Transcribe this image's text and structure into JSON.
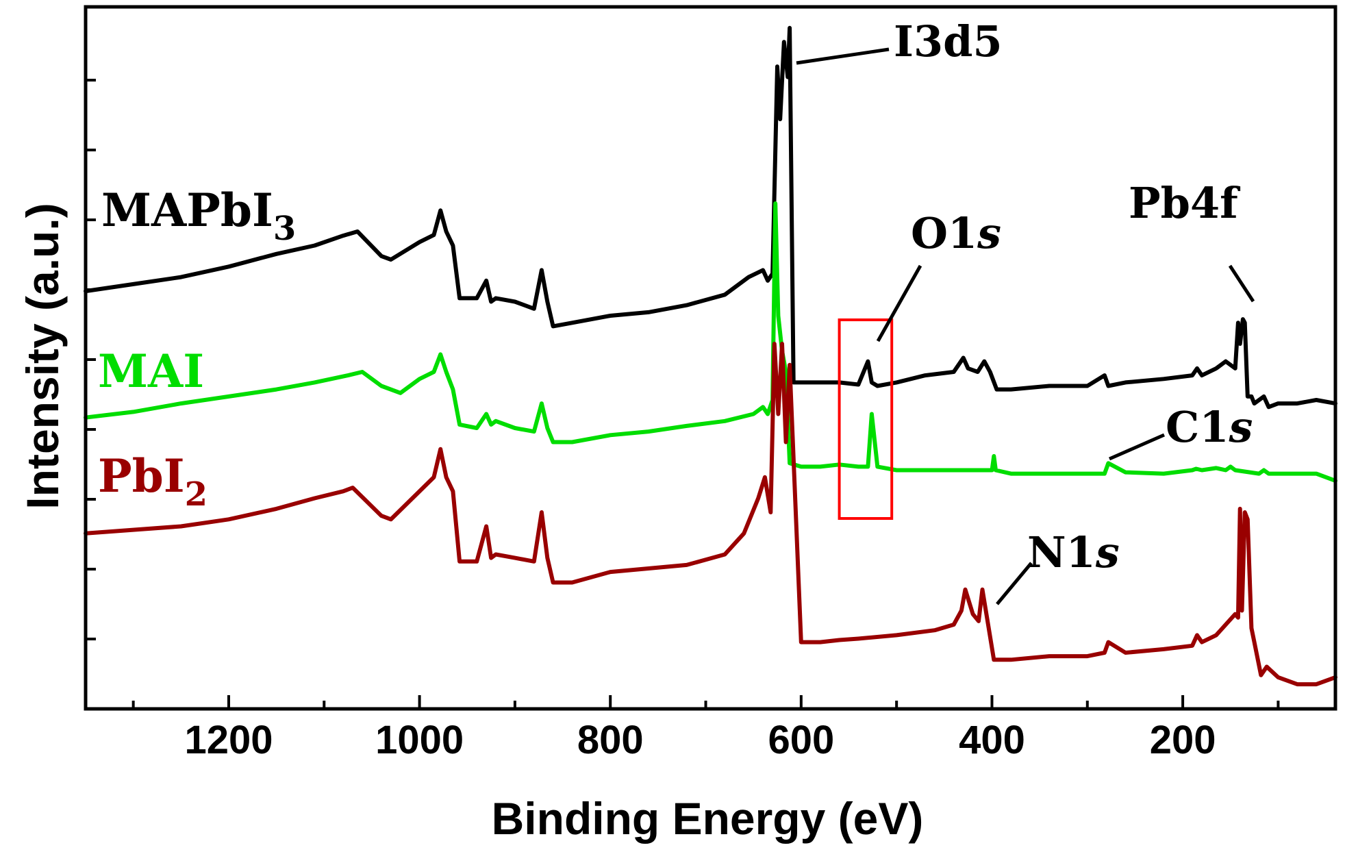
{
  "chart_data": {
    "type": "line",
    "title": "",
    "xlabel": "Binding Energy (eV)",
    "ylabel": "Intensity (a.u.)",
    "xlim": [
      1350,
      40
    ],
    "x_reversed": true,
    "xticks": [
      1200,
      1000,
      800,
      600,
      400,
      200
    ],
    "xtick_labels": [
      "1200",
      "1000",
      "800",
      "600",
      "400",
      "200"
    ],
    "ylim": [
      0,
      100
    ],
    "series": [
      {
        "name": "MAPbI3",
        "label_main": "MAPbI",
        "label_sub": "3",
        "color": "#000000",
        "x": [
          1350,
          1300,
          1250,
          1200,
          1150,
          1110,
          1080,
          1065,
          1040,
          1030,
          1000,
          985,
          978,
          972,
          965,
          958,
          940,
          930,
          925,
          920,
          900,
          880,
          872,
          866,
          860,
          840,
          800,
          760,
          720,
          680,
          655,
          640,
          635,
          630,
          625,
          622,
          618,
          614,
          612,
          608,
          600,
          580,
          560,
          540,
          530,
          526,
          520,
          500,
          470,
          440,
          430,
          425,
          415,
          408,
          402,
          395,
          380,
          340,
          300,
          282,
          278,
          260,
          220,
          190,
          185,
          180,
          165,
          155,
          145,
          142,
          140,
          137,
          135,
          132,
          128,
          125,
          115,
          110,
          100,
          80,
          60,
          40
        ],
        "y": [
          59.5,
          60.5,
          61.5,
          63,
          64.8,
          66,
          67.4,
          68,
          64.5,
          64,
          66.5,
          67.5,
          71,
          68,
          66,
          58.5,
          58.5,
          61,
          58,
          58.5,
          58,
          57,
          62.5,
          58,
          54.5,
          55,
          56,
          56.5,
          57.5,
          59,
          61.5,
          62.5,
          61,
          62,
          91.5,
          84,
          95,
          90,
          97,
          46.5,
          46.5,
          46.5,
          46.5,
          46.2,
          49.5,
          46.5,
          46,
          46.5,
          47.5,
          48,
          50,
          48.5,
          48,
          49.5,
          48,
          45.5,
          45.5,
          46,
          46,
          47.5,
          46,
          46.5,
          47,
          47.5,
          48.5,
          47.5,
          48.5,
          49.5,
          48.5,
          55,
          52,
          55.5,
          55,
          44.5,
          44.5,
          43.5,
          44.5,
          43,
          43.5,
          43.5,
          44,
          43.5
        ]
      },
      {
        "name": "MAI",
        "label_main": "MAI",
        "label_sub": "",
        "color": "#00dd00",
        "x": [
          1350,
          1300,
          1250,
          1200,
          1150,
          1110,
          1075,
          1060,
          1040,
          1020,
          1000,
          985,
          978,
          972,
          965,
          958,
          940,
          930,
          925,
          920,
          900,
          880,
          872,
          866,
          860,
          840,
          800,
          760,
          720,
          680,
          650,
          640,
          635,
          630,
          627,
          624,
          620,
          616,
          612,
          600,
          580,
          560,
          540,
          530,
          526,
          520,
          500,
          450,
          400,
          398,
          396,
          380,
          340,
          300,
          282,
          278,
          260,
          220,
          190,
          186,
          180,
          165,
          155,
          150,
          145,
          120,
          115,
          110,
          100,
          80,
          60,
          40
        ],
        "y": [
          41.5,
          42.3,
          43.5,
          44.5,
          45.5,
          46.5,
          47.5,
          48,
          46,
          45,
          47,
          48,
          50.5,
          48,
          45.5,
          40.5,
          40,
          42,
          40.5,
          41,
          40,
          39.5,
          43.5,
          40,
          38,
          38,
          39,
          39.5,
          40.3,
          41,
          42,
          43,
          42,
          44,
          72,
          56,
          51,
          48,
          35,
          34.5,
          34.5,
          34.8,
          34.5,
          34.5,
          42,
          34.5,
          34,
          34,
          34,
          36,
          34,
          33.5,
          33.5,
          33.5,
          33.5,
          35,
          33.7,
          33.5,
          34,
          34.2,
          34,
          34.3,
          34,
          34.5,
          34,
          33.5,
          34,
          33.5,
          33.5,
          33.5,
          33.5,
          32.5
        ]
      },
      {
        "name": "PbI2",
        "label_main": "PbI",
        "label_sub": "2",
        "color": "#990000",
        "x": [
          1350,
          1300,
          1250,
          1200,
          1150,
          1110,
          1080,
          1070,
          1040,
          1030,
          1000,
          985,
          978,
          972,
          965,
          958,
          940,
          930,
          925,
          920,
          900,
          880,
          872,
          866,
          860,
          840,
          800,
          760,
          720,
          680,
          660,
          645,
          638,
          632,
          628,
          624,
          620,
          616,
          612,
          600,
          580,
          560,
          540,
          500,
          460,
          440,
          432,
          428,
          420,
          414,
          410,
          404,
          398,
          380,
          340,
          300,
          282,
          278,
          260,
          220,
          190,
          185,
          180,
          165,
          155,
          145,
          142,
          140,
          138,
          135,
          132,
          128,
          125,
          118,
          112,
          100,
          80,
          60,
          40
        ],
        "y": [
          25,
          25.5,
          26,
          27,
          28.5,
          30,
          31,
          31.5,
          27.5,
          27,
          31,
          33,
          37,
          33,
          31,
          21,
          21,
          26,
          21.5,
          22,
          21.5,
          21,
          28,
          21.5,
          18,
          18,
          19.5,
          20,
          20.5,
          22,
          25,
          30,
          33,
          28,
          52,
          42,
          52,
          38,
          49,
          9.5,
          9.5,
          9.8,
          10,
          10.5,
          11.2,
          12,
          14,
          17,
          13.5,
          12.5,
          17,
          12,
          7,
          7,
          7.5,
          7.5,
          8,
          9.5,
          8,
          8.5,
          9,
          10.5,
          9.5,
          10.5,
          12,
          13.5,
          13,
          28.5,
          14,
          28,
          27,
          11.5,
          9.5,
          4.8,
          6,
          4.5,
          3.5,
          3.5,
          4.5
        ]
      }
    ],
    "annotations": [
      {
        "text": "I3d5",
        "italic_part": "",
        "target": "I 3d5 peak, MAPbI3 curve"
      },
      {
        "text": "O1",
        "italic_part": "s",
        "target": "O 1s peak near 530 eV"
      },
      {
        "text": "Pb4f",
        "italic_part": "",
        "target": "Pb 4f peak, MAPbI3 curve"
      },
      {
        "text": "C1",
        "italic_part": "s",
        "target": "C 1s peak near 285 eV, MAI curve"
      },
      {
        "text": "N1",
        "italic_part": "s",
        "target": "N 1s peak near 400 eV"
      }
    ],
    "highlight_box": {
      "x_range": [
        560,
        505
      ],
      "color": "#ff0000",
      "label": "O1s region"
    },
    "grid": false,
    "legend": "inline labels at left"
  }
}
